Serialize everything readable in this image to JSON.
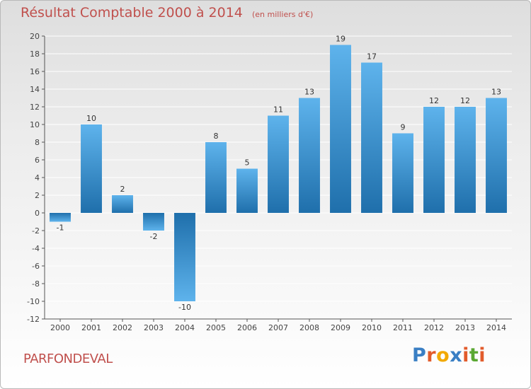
{
  "header": {
    "title": "Résultat Comptable 2000 à 2014",
    "subtitle": "(en milliers d'€)"
  },
  "commune": "PARFONDEVAL",
  "logo": {
    "text": "Proxiti",
    "letter_colors": [
      "#3a7fc4",
      "#e25b2b",
      "#f2a900",
      "#3a7fc4",
      "#e25b2b",
      "#5aa832",
      "#e25b2b"
    ]
  },
  "colors": {
    "bar_light": "#5eb3ec",
    "bar_dark": "#1f6fab",
    "title": "#c0504d",
    "grid": "#ffffff"
  },
  "chart_data": {
    "type": "bar",
    "title": "Résultat Comptable 2000 à 2014",
    "ylabel": "",
    "xlabel": "",
    "categories": [
      "2000",
      "2001",
      "2002",
      "2003",
      "2004",
      "2005",
      "2006",
      "2007",
      "2008",
      "2009",
      "2010",
      "2011",
      "2012",
      "2013",
      "2014"
    ],
    "values": [
      -1,
      10,
      2,
      -2,
      -10,
      8,
      5,
      11,
      13,
      19,
      17,
      9,
      12,
      12,
      13
    ],
    "ylim": [
      -12,
      20
    ],
    "yticks": [
      20,
      18,
      16,
      14,
      12,
      10,
      8,
      6,
      4,
      2,
      0,
      -2,
      -4,
      -6,
      -8,
      -10,
      -12
    ],
    "grid": true,
    "data_labels": true
  }
}
